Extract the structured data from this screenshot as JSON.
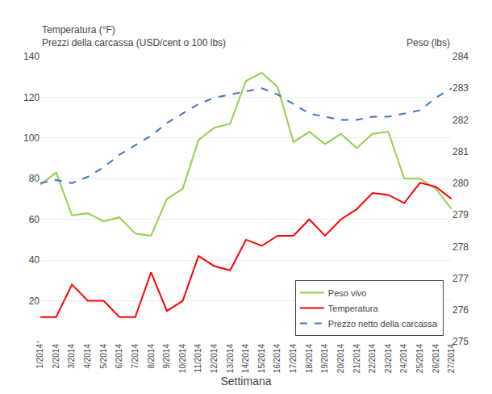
{
  "chart_data": {
    "type": "line",
    "categories": [
      "1/2014",
      "2/2014",
      "3/2014",
      "4/2014",
      "5/2014",
      "6/2014",
      "7/2014",
      "8/2014",
      "9/2014",
      "10/2014",
      "11/2014",
      "12/2014",
      "13/2014",
      "14/2014",
      "15/2014",
      "16/2014",
      "17/2014",
      "18/2014",
      "19/2014",
      "20/2014",
      "21/2014",
      "22/2014",
      "23/2014",
      "24/2014",
      "25/2014",
      "26/2014",
      "27/2014"
    ],
    "series": [
      {
        "name": "Peso vivo",
        "color": "#92D050",
        "line_style": "solid",
        "values": [
          77,
          83,
          62,
          63,
          59,
          61,
          53,
          52,
          70,
          75,
          99,
          105,
          107,
          128,
          132,
          125,
          98,
          103,
          97,
          102,
          95,
          102,
          103,
          80,
          80,
          75,
          65
        ]
      },
      {
        "name": "Temperatura",
        "color": "#FF0000",
        "line_style": "solid",
        "values": [
          12,
          12,
          28,
          20,
          20,
          12,
          12,
          34,
          15,
          20,
          42,
          37,
          35,
          50,
          47,
          52,
          52,
          60,
          52,
          60,
          65,
          73,
          72,
          68,
          78,
          76,
          70
        ]
      },
      {
        "name": "Prezzo netto della carcassa",
        "color": "#4472C4",
        "line_style": "dashed",
        "axis": "y2",
        "values": [
          280.0,
          280.1,
          280.0,
          280.2,
          280.5,
          280.9,
          281.2,
          281.5,
          281.9,
          282.2,
          282.5,
          282.7,
          282.8,
          282.9,
          283.0,
          282.8,
          282.5,
          282.2,
          282.1,
          282.0,
          282.0,
          282.1,
          282.1,
          282.2,
          282.3,
          282.7,
          283.0
        ]
      }
    ],
    "xlabel": "Settimana",
    "ylabel": [
      "Temperatura (°F)",
      "Prezzi della carcassa (USD/cent o 100 lbs)"
    ],
    "y2label": "Peso (lbs)",
    "ylim": [
      0,
      140
    ],
    "yticks": [
      {
        "value": 0,
        "label": "-"
      },
      20,
      40,
      60,
      80,
      100,
      120,
      140
    ],
    "y2lim": [
      275,
      284
    ],
    "y2ticks": [
      275,
      276,
      277,
      278,
      279,
      280,
      281,
      282,
      283,
      284
    ],
    "grid": true,
    "legend": "lower right"
  }
}
